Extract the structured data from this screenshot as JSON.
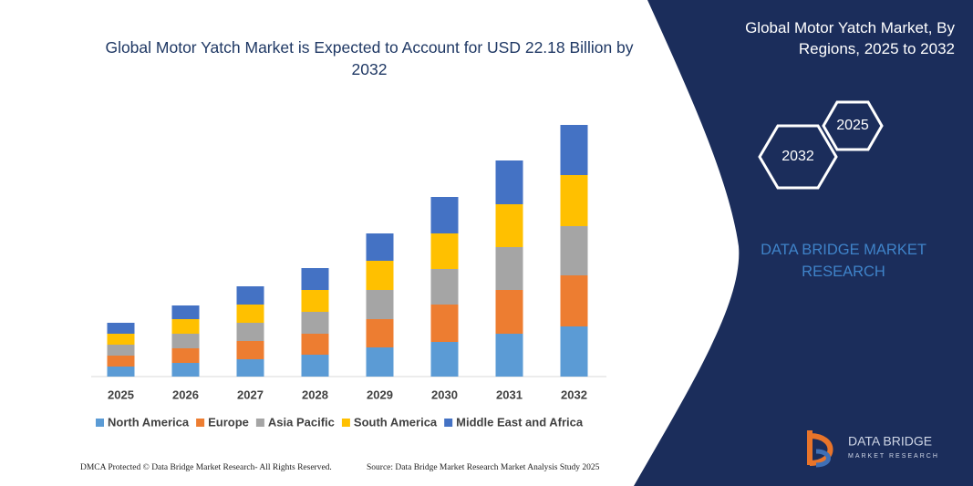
{
  "chart_data": {
    "type": "stacked_bar",
    "title": "Global Motor Yatch Market is Expected to Account for USD 22.18 Billion by 2032",
    "categories": [
      "2025",
      "2026",
      "2027",
      "2028",
      "2029",
      "2030",
      "2031",
      "2032"
    ],
    "series": [
      {
        "name": "North America",
        "color": "#5b9bd5",
        "values": [
          11,
          15,
          19,
          24,
          32,
          38,
          47,
          55
        ]
      },
      {
        "name": "Europe",
        "color": "#ed7d31",
        "values": [
          12,
          16,
          20,
          23,
          31,
          41,
          48,
          56
        ]
      },
      {
        "name": "Asia Pacific",
        "color": "#a5a5a5",
        "values": [
          12,
          16,
          20,
          24,
          32,
          39,
          47,
          54
        ]
      },
      {
        "name": "South America",
        "color": "#ffc000",
        "values": [
          12,
          16,
          20,
          24,
          32,
          39,
          47,
          56
        ]
      },
      {
        "name": "Middle East and Africa",
        "color": "#4472c4",
        "values": [
          12,
          15,
          20,
          24,
          30,
          40,
          48,
          55
        ]
      }
    ],
    "legend": "bottom"
  },
  "panel": {
    "title": "Global Motor Yatch Market, By Regions, 2025 to 2032",
    "hexagons": [
      "2025",
      "2032"
    ],
    "brand": "DATA BRIDGE MARKET RESEARCH",
    "logo_name": "DATA BRIDGE",
    "logo_tagline": "MARKET RESEARCH"
  },
  "footer": {
    "left": "DMCA Protected © Data Bridge Market Research-  All Rights Reserved.",
    "right": "Source: Data Bridge Market Research  Market Analysis Study 2025"
  }
}
